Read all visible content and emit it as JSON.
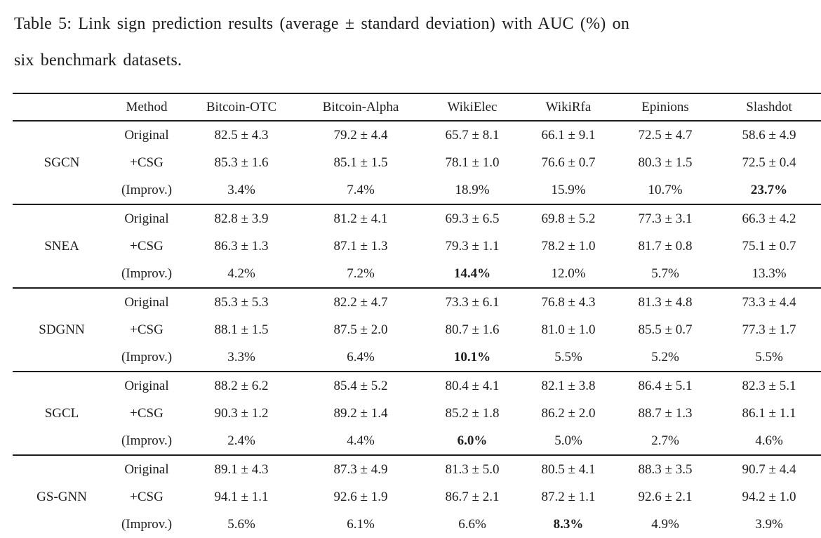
{
  "caption": {
    "line1": "Table 5: Link sign prediction results (average ± standard deviation) with AUC (%) on",
    "line2": "six benchmark datasets."
  },
  "table": {
    "columns": [
      "",
      "Method",
      "Bitcoin-OTC",
      "Bitcoin-Alpha",
      "WikiElec",
      "WikiRfa",
      "Epinions",
      "Slashdot"
    ],
    "groups": [
      {
        "name": "SGCN",
        "rows": [
          {
            "method": "Original",
            "values": [
              "82.5 ± 4.3",
              "79.2 ± 4.4",
              "65.7 ± 8.1",
              "66.1 ± 9.1",
              "72.5 ± 4.7",
              "58.6 ± 4.9"
            ],
            "bold": []
          },
          {
            "method": "+CSG",
            "values": [
              "85.3 ± 1.6",
              "85.1 ± 1.5",
              "78.1 ± 1.0",
              "76.6 ± 0.7",
              "80.3 ± 1.5",
              "72.5 ± 0.4"
            ],
            "bold": []
          },
          {
            "method": "(Improv.)",
            "values": [
              "3.4%",
              "7.4%",
              "18.9%",
              "15.9%",
              "10.7%",
              "23.7%"
            ],
            "bold": [
              5
            ]
          }
        ]
      },
      {
        "name": "SNEA",
        "rows": [
          {
            "method": "Original",
            "values": [
              "82.8 ± 3.9",
              "81.2 ± 4.1",
              "69.3 ± 6.5",
              "69.8 ± 5.2",
              "77.3 ± 3.1",
              "66.3 ± 4.2"
            ],
            "bold": []
          },
          {
            "method": "+CSG",
            "values": [
              "86.3 ± 1.3",
              "87.1 ± 1.3",
              "79.3 ± 1.1",
              "78.2 ± 1.0",
              "81.7 ± 0.8",
              "75.1 ± 0.7"
            ],
            "bold": []
          },
          {
            "method": "(Improv.)",
            "values": [
              "4.2%",
              "7.2%",
              "14.4%",
              "12.0%",
              "5.7%",
              "13.3%"
            ],
            "bold": [
              2
            ]
          }
        ]
      },
      {
        "name": "SDGNN",
        "rows": [
          {
            "method": "Original",
            "values": [
              "85.3 ± 5.3",
              "82.2 ± 4.7",
              "73.3 ± 6.1",
              "76.8 ± 4.3",
              "81.3 ± 4.8",
              "73.3 ± 4.4"
            ],
            "bold": []
          },
          {
            "method": "+CSG",
            "values": [
              "88.1 ± 1.5",
              "87.5 ± 2.0",
              "80.7 ± 1.6",
              "81.0 ± 1.0",
              "85.5 ± 0.7",
              "77.3 ± 1.7"
            ],
            "bold": []
          },
          {
            "method": "(Improv.)",
            "values": [
              "3.3%",
              "6.4%",
              "10.1%",
              "5.5%",
              "5.2%",
              "5.5%"
            ],
            "bold": [
              2
            ]
          }
        ]
      },
      {
        "name": "SGCL",
        "rows": [
          {
            "method": "Original",
            "values": [
              "88.2 ± 6.2",
              "85.4 ± 5.2",
              "80.4 ± 4.1",
              "82.1 ± 3.8",
              "86.4 ± 5.1",
              "82.3 ± 5.1"
            ],
            "bold": []
          },
          {
            "method": "+CSG",
            "values": [
              "90.3 ± 1.2",
              "89.2 ± 1.4",
              "85.2 ± 1.8",
              "86.2 ± 2.0",
              "88.7 ± 1.3",
              "86.1 ± 1.1"
            ],
            "bold": []
          },
          {
            "method": "(Improv.)",
            "values": [
              "2.4%",
              "4.4%",
              "6.0%",
              "5.0%",
              "2.7%",
              "4.6%"
            ],
            "bold": [
              2
            ]
          }
        ]
      },
      {
        "name": "GS-GNN",
        "rows": [
          {
            "method": "Original",
            "values": [
              "89.1 ± 4.3",
              "87.3 ± 4.9",
              "81.3 ± 5.0",
              "80.5 ± 4.1",
              "88.3 ± 3.5",
              "90.7 ± 4.4"
            ],
            "bold": []
          },
          {
            "method": "+CSG",
            "values": [
              "94.1 ± 1.1",
              "92.6 ± 1.9",
              "86.7 ± 2.1",
              "87.2 ± 1.1",
              "92.6 ± 2.1",
              "94.2 ± 1.0"
            ],
            "bold": []
          },
          {
            "method": "(Improv.)",
            "values": [
              "5.6%",
              "6.1%",
              "6.6%",
              "8.3%",
              "4.9%",
              "3.9%"
            ],
            "bold": [
              3
            ]
          }
        ]
      }
    ]
  }
}
